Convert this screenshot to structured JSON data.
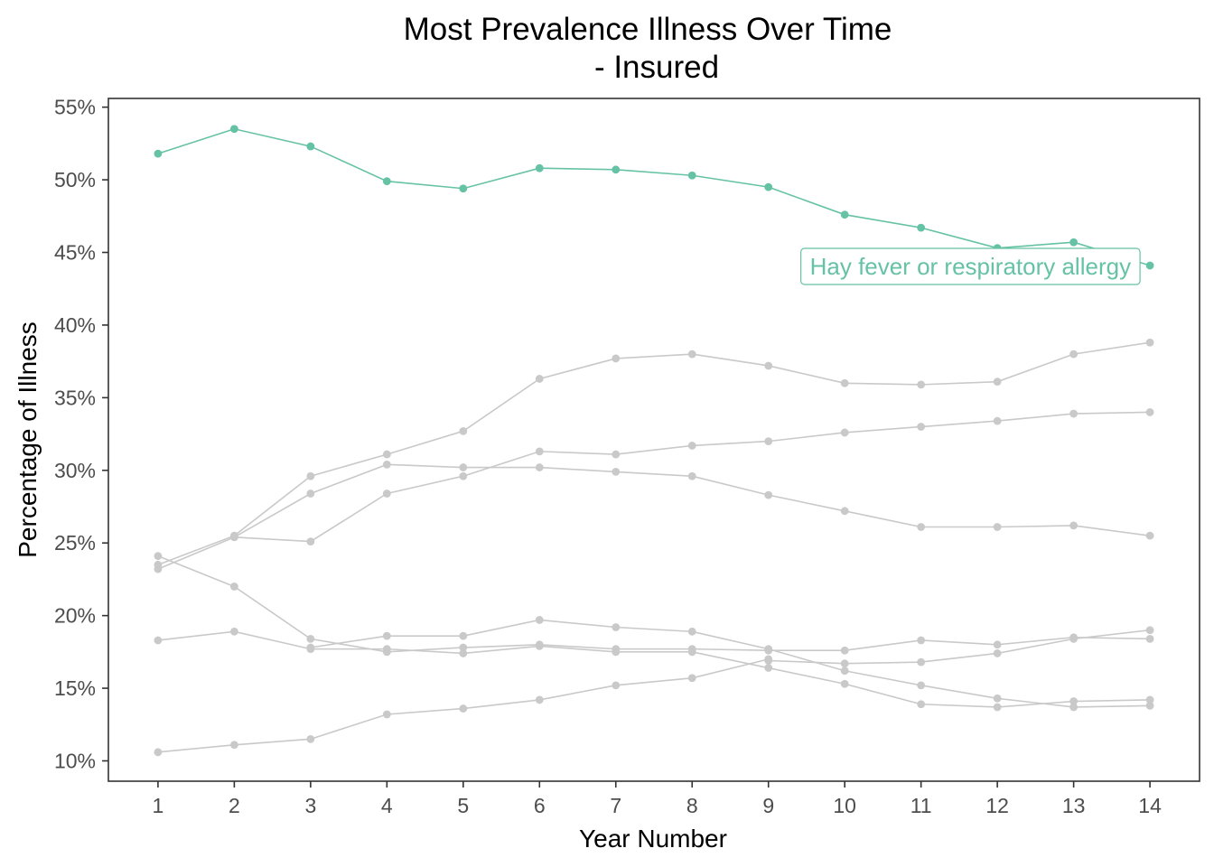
{
  "chart_data": {
    "type": "line",
    "title": "Most Prevalence Illness Over Time",
    "subtitle": "- Insured",
    "xlabel": "Year Number",
    "ylabel": "Percentage of Illness",
    "x": [
      1,
      2,
      3,
      4,
      5,
      6,
      7,
      8,
      9,
      10,
      11,
      12,
      13,
      14
    ],
    "xlim": [
      0.35,
      14.65
    ],
    "ylim": [
      8.6,
      55.6
    ],
    "y_ticks": [
      10,
      15,
      20,
      25,
      30,
      35,
      40,
      45,
      50,
      55
    ],
    "y_tick_labels": [
      "10%",
      "15%",
      "20%",
      "25%",
      "30%",
      "35%",
      "40%",
      "45%",
      "50%",
      "55%"
    ],
    "x_tick_labels": [
      "1",
      "2",
      "3",
      "4",
      "5",
      "6",
      "7",
      "8",
      "9",
      "10",
      "11",
      "12",
      "13",
      "14"
    ],
    "grid": false,
    "highlight_color": "#66c2a5",
    "muted_color": "#c9c9c9",
    "series": [
      {
        "name": "Hay fever or respiratory allergy",
        "highlighted": true,
        "values": [
          51.8,
          53.5,
          52.3,
          49.9,
          49.4,
          50.8,
          50.7,
          50.3,
          49.5,
          47.6,
          46.7,
          45.3,
          45.7,
          44.1
        ]
      },
      {
        "highlighted": false,
        "values": [
          23.5,
          25.5,
          29.6,
          31.1,
          32.7,
          36.3,
          37.7,
          38.0,
          37.2,
          36.0,
          35.9,
          36.1,
          38.0,
          38.8
        ]
      },
      {
        "highlighted": false,
        "values": [
          23.2,
          25.4,
          28.4,
          30.4,
          30.2,
          30.2,
          29.9,
          29.6,
          28.3,
          27.2,
          26.1,
          26.1,
          26.2,
          25.5
        ]
      },
      {
        "highlighted": false,
        "values": [
          null,
          25.4,
          25.1,
          28.4,
          29.6,
          31.3,
          31.1,
          31.7,
          32.0,
          32.6,
          33.0,
          33.4,
          33.9,
          34.0
        ]
      },
      {
        "highlighted": false,
        "values": [
          24.1,
          22.0,
          18.4,
          17.5,
          17.8,
          18.0,
          17.7,
          17.7,
          17.6,
          17.6,
          18.3,
          18.0,
          18.5,
          18.4
        ]
      },
      {
        "highlighted": false,
        "values": [
          18.3,
          18.9,
          17.7,
          17.7,
          17.4,
          17.9,
          17.5,
          17.5,
          16.4,
          15.3,
          13.9,
          13.7,
          14.1,
          14.2
        ]
      },
      {
        "highlighted": false,
        "values": [
          null,
          null,
          17.8,
          18.6,
          18.6,
          19.7,
          19.2,
          18.9,
          17.7,
          16.2,
          15.2,
          14.3,
          13.7,
          13.8
        ]
      },
      {
        "highlighted": false,
        "values": [
          null,
          null,
          null,
          null,
          null,
          null,
          null,
          null,
          16.9,
          16.7,
          16.8,
          17.4,
          18.4,
          19.0
        ]
      },
      {
        "highlighted": false,
        "values": [
          10.6,
          11.1,
          11.5,
          13.2,
          13.6,
          14.2,
          15.2,
          15.7,
          17.0,
          null,
          null,
          null,
          null,
          null
        ]
      }
    ],
    "annotation": {
      "text": "Hay fever or respiratory allergy",
      "series_index": 0
    }
  }
}
